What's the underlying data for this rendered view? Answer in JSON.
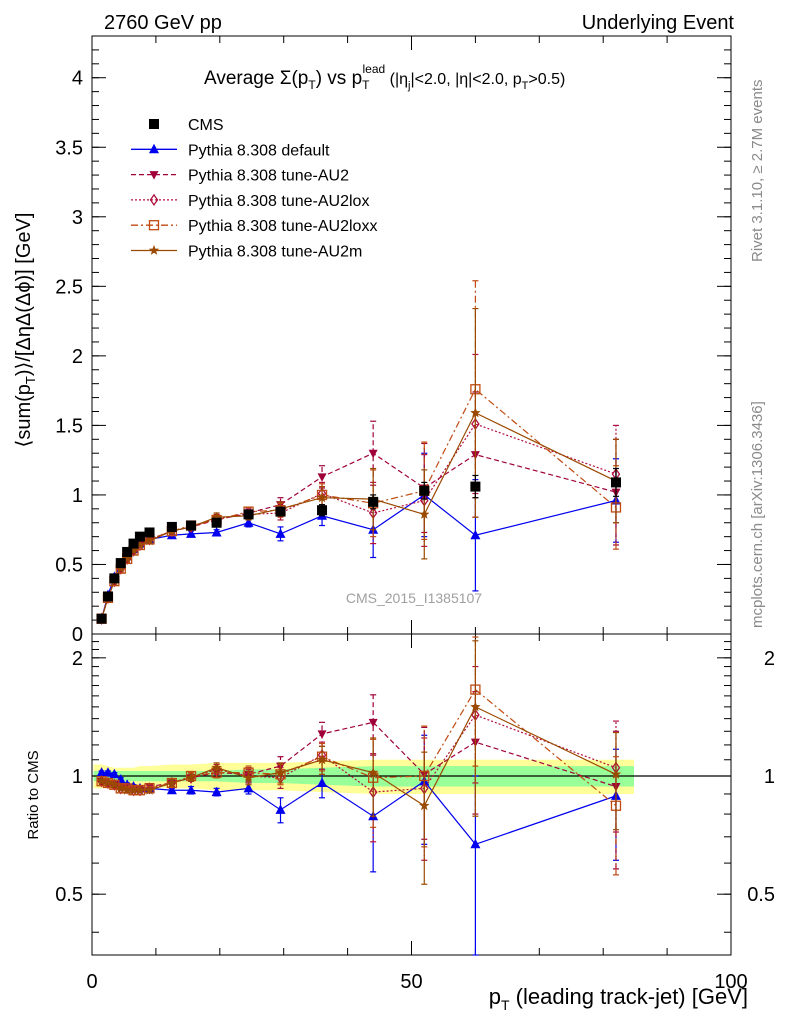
{
  "header": {
    "left": "2760 GeV pp",
    "right": "Underlying Event"
  },
  "side_labels": {
    "rivet": "Rivet 3.1.10, ≥ 2.7M events",
    "mcplots": "mcplots.cern.ch [arXiv:1306.3436]"
  },
  "watermark": "CMS_2015_I1385107",
  "axes": {
    "top_ylabel": "⟨sum(p_T)⟩/[ΔηΔ(Δϕ)] [GeV]",
    "ratio_ylabel": "Ratio to CMS",
    "xlabel": "p_T (leading track-jet) [GeV]"
  },
  "chart_data": [
    {
      "type": "scatter",
      "title": "Average Σ(p_T) vs p_T^lead (|η_j|<2.0, |η|<2.0, p_T>0.5)",
      "xlabel": "p_T (leading track-jet) [GeV]",
      "ylabel": "⟨sum(p_T)⟩/[ΔηΔ(Δϕ)] [GeV]",
      "xlim": [
        0,
        100
      ],
      "ylim": [
        0,
        4.3
      ],
      "x_ticks": [
        "0",
        "50",
        "100"
      ],
      "y_ticks": [
        "0",
        "0.5",
        "1",
        "1.5",
        "2",
        "2.5",
        "3",
        "3.5",
        "4"
      ],
      "legend_position": "top-left",
      "x": [
        1.5,
        2.5,
        3.5,
        4.5,
        5.5,
        6.5,
        7.5,
        9.0,
        12.5,
        15.5,
        19.5,
        24.5,
        29.5,
        36.0,
        44.0,
        52.0,
        60.0,
        82.0
      ],
      "series": [
        {
          "name": "CMS",
          "color": "#000000",
          "marker": "square",
          "line": "none",
          "values": [
            0.11,
            0.27,
            0.4,
            0.51,
            0.59,
            0.65,
            0.7,
            0.73,
            0.77,
            0.78,
            0.8,
            0.86,
            0.88,
            0.89,
            0.95,
            1.03,
            1.06,
            1.09
          ],
          "errors": [
            0.01,
            0.01,
            0.01,
            0.01,
            0.01,
            0.01,
            0.02,
            0.02,
            0.02,
            0.02,
            0.02,
            0.03,
            0.03,
            0.04,
            0.05,
            0.06,
            0.08,
            0.1
          ]
        },
        {
          "name": "Pythia 8.308 default",
          "color": "#0000ee",
          "marker": "triangle-up",
          "line": "solid",
          "values": [
            0.11,
            0.28,
            0.41,
            0.5,
            0.56,
            0.61,
            0.65,
            0.68,
            0.71,
            0.72,
            0.73,
            0.8,
            0.72,
            0.85,
            0.75,
            1.0,
            0.71,
            0.96
          ],
          "errors": [
            0.01,
            0.01,
            0.01,
            0.01,
            0.01,
            0.01,
            0.01,
            0.01,
            0.01,
            0.02,
            0.02,
            0.03,
            0.05,
            0.07,
            0.2,
            0.3,
            0.4,
            0.3
          ]
        },
        {
          "name": "Pythia 8.308 tune-AU2",
          "color": "#a0003a",
          "marker": "triangle-down",
          "line": "dashed",
          "values": [
            0.11,
            0.26,
            0.38,
            0.47,
            0.54,
            0.6,
            0.65,
            0.68,
            0.74,
            0.77,
            0.82,
            0.87,
            0.93,
            1.13,
            1.3,
            1.05,
            1.29,
            1.02
          ],
          "errors": [
            0.01,
            0.01,
            0.01,
            0.01,
            0.01,
            0.01,
            0.01,
            0.01,
            0.02,
            0.02,
            0.03,
            0.03,
            0.05,
            0.08,
            0.23,
            0.32,
            0.45,
            0.38
          ]
        },
        {
          "name": "Pythia 8.308 tune-AU2lox",
          "color": "#b0103e",
          "marker": "diamond-open",
          "line": "dotted",
          "values": [
            0.11,
            0.26,
            0.38,
            0.47,
            0.54,
            0.6,
            0.64,
            0.68,
            0.74,
            0.77,
            0.83,
            0.86,
            0.87,
            1.01,
            0.87,
            0.96,
            1.51,
            1.15
          ],
          "errors": [
            0.01,
            0.01,
            0.01,
            0.01,
            0.01,
            0.01,
            0.01,
            0.01,
            0.02,
            0.02,
            0.03,
            0.03,
            0.05,
            0.08,
            0.22,
            0.33,
            0.5,
            0.35
          ]
        },
        {
          "name": "Pythia 8.308 tune-AU2loxx",
          "color": "#c04a10",
          "marker": "square-open",
          "line": "dashdot",
          "values": [
            0.11,
            0.26,
            0.38,
            0.47,
            0.54,
            0.6,
            0.64,
            0.68,
            0.74,
            0.78,
            0.82,
            0.88,
            0.89,
            1.0,
            0.94,
            1.03,
            1.76,
            0.91
          ],
          "errors": [
            0.01,
            0.01,
            0.01,
            0.01,
            0.01,
            0.01,
            0.01,
            0.01,
            0.02,
            0.02,
            0.03,
            0.03,
            0.05,
            0.08,
            0.24,
            0.35,
            0.78,
            0.3
          ]
        },
        {
          "name": "Pythia 8.308 tune-AU2m",
          "color": "#9a4a00",
          "marker": "star",
          "line": "solid",
          "values": [
            0.11,
            0.26,
            0.38,
            0.47,
            0.54,
            0.6,
            0.64,
            0.67,
            0.74,
            0.77,
            0.84,
            0.85,
            0.9,
            0.98,
            0.97,
            0.86,
            1.59,
            1.1
          ],
          "errors": [
            0.01,
            0.01,
            0.01,
            0.01,
            0.01,
            0.01,
            0.01,
            0.01,
            0.02,
            0.02,
            0.03,
            0.03,
            0.05,
            0.08,
            0.22,
            0.32,
            0.75,
            0.3
          ]
        }
      ]
    },
    {
      "type": "scatter",
      "title": "",
      "xlabel": "p_T (leading track-jet) [GeV]",
      "ylabel": "Ratio to CMS",
      "xlim": [
        0,
        100
      ],
      "ylim": [
        0.35,
        2.3
      ],
      "x_ticks": [
        "0",
        "50",
        "100"
      ],
      "y_ticks": [
        "0.5",
        "1",
        "2"
      ],
      "log_y": true,
      "reference": 1.0,
      "x": [
        1.5,
        2.5,
        3.5,
        4.5,
        5.5,
        6.5,
        7.5,
        9.0,
        12.5,
        15.5,
        19.5,
        24.5,
        29.5,
        36.0,
        44.0,
        52.0,
        60.0,
        82.0
      ],
      "bands": {
        "stat_half_width": [
          0.03,
          0.03,
          0.03,
          0.03,
          0.03,
          0.03,
          0.03,
          0.03,
          0.03,
          0.03,
          0.03,
          0.04,
          0.04,
          0.05,
          0.06,
          0.06,
          0.06,
          0.06
        ],
        "total_half_width": [
          0.07,
          0.06,
          0.05,
          0.05,
          0.05,
          0.05,
          0.06,
          0.06,
          0.07,
          0.07,
          0.08,
          0.08,
          0.08,
          0.09,
          0.1,
          0.1,
          0.1,
          0.1
        ],
        "stat_color": "#99ff99",
        "total_color": "#ffff99"
      },
      "series": [
        {
          "name": "Pythia 8.308 default",
          "color": "#0000ee",
          "marker": "triangle-up",
          "line": "solid",
          "values": [
            1.02,
            1.02,
            1.01,
            0.98,
            0.95,
            0.94,
            0.93,
            0.93,
            0.92,
            0.92,
            0.91,
            0.93,
            0.82,
            0.96,
            0.79,
            0.97,
            0.67,
            0.89
          ],
          "errors": [
            0.01,
            0.01,
            0.01,
            0.01,
            0.01,
            0.01,
            0.01,
            0.01,
            0.01,
            0.02,
            0.02,
            0.03,
            0.06,
            0.08,
            0.22,
            0.3,
            0.33,
            0.28
          ]
        },
        {
          "name": "Pythia 8.308 tune-AU2",
          "color": "#a0003a",
          "marker": "triangle-down",
          "line": "dashed",
          "values": [
            0.97,
            0.96,
            0.95,
            0.94,
            0.93,
            0.93,
            0.93,
            0.94,
            0.96,
            0.99,
            1.02,
            1.01,
            1.06,
            1.28,
            1.37,
            1.01,
            1.22,
            0.94
          ],
          "errors": [
            0.01,
            0.01,
            0.01,
            0.01,
            0.01,
            0.01,
            0.01,
            0.01,
            0.02,
            0.02,
            0.03,
            0.04,
            0.06,
            0.09,
            0.24,
            0.32,
            0.42,
            0.36
          ]
        },
        {
          "name": "Pythia 8.308 tune-AU2lox",
          "color": "#b0103e",
          "marker": "diamond-open",
          "line": "dotted",
          "values": [
            0.97,
            0.96,
            0.95,
            0.93,
            0.93,
            0.92,
            0.92,
            0.93,
            0.96,
            0.99,
            1.04,
            1.0,
            0.99,
            1.13,
            0.91,
            0.93,
            1.43,
            1.05
          ],
          "errors": [
            0.01,
            0.01,
            0.01,
            0.01,
            0.01,
            0.01,
            0.01,
            0.01,
            0.02,
            0.02,
            0.03,
            0.04,
            0.06,
            0.09,
            0.23,
            0.32,
            0.47,
            0.33
          ]
        },
        {
          "name": "Pythia 8.308 tune-AU2loxx",
          "color": "#c04a10",
          "marker": "square-open",
          "line": "dashdot",
          "values": [
            0.97,
            0.96,
            0.95,
            0.93,
            0.93,
            0.92,
            0.92,
            0.93,
            0.96,
            1.0,
            1.02,
            1.02,
            1.01,
            1.12,
            0.99,
            1.0,
            1.66,
            0.84
          ],
          "errors": [
            0.01,
            0.01,
            0.01,
            0.01,
            0.01,
            0.01,
            0.01,
            0.01,
            0.02,
            0.02,
            0.03,
            0.04,
            0.06,
            0.09,
            0.25,
            0.34,
            0.6,
            0.28
          ]
        },
        {
          "name": "Pythia 8.308 tune-AU2m",
          "color": "#9a4a00",
          "marker": "star",
          "line": "solid",
          "values": [
            0.97,
            0.96,
            0.95,
            0.93,
            0.92,
            0.92,
            0.92,
            0.92,
            0.96,
            0.99,
            1.05,
            0.99,
            1.02,
            1.1,
            1.02,
            0.84,
            1.5,
            1.01
          ],
          "errors": [
            0.01,
            0.01,
            0.01,
            0.01,
            0.01,
            0.01,
            0.01,
            0.01,
            0.02,
            0.02,
            0.03,
            0.04,
            0.06,
            0.09,
            0.23,
            0.31,
            0.71,
            0.28
          ]
        }
      ]
    }
  ]
}
